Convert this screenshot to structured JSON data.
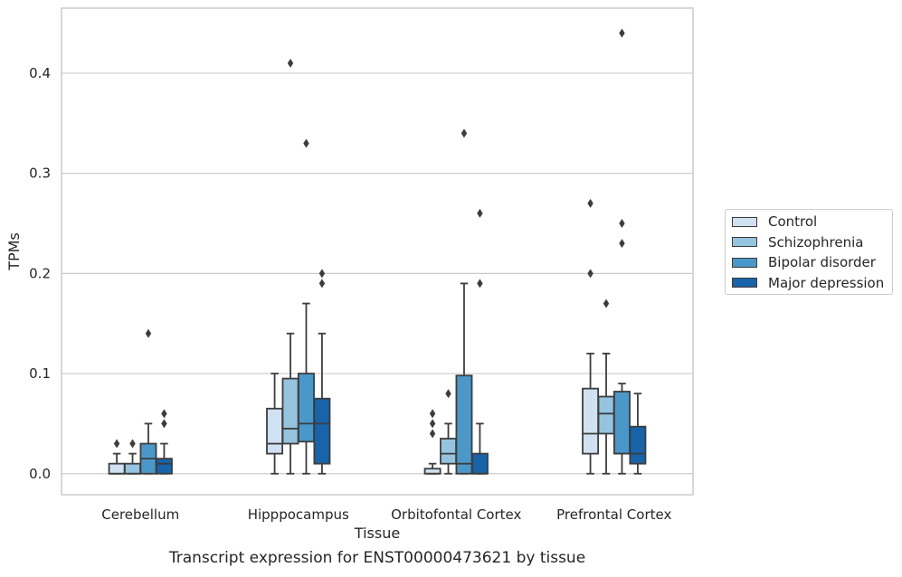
{
  "chart_data": {
    "type": "box",
    "caption": "Transcript expression for ENST00000473621 by tissue",
    "xlabel": "Tissue",
    "ylabel": "TPMs",
    "ylim": [
      -0.021,
      0.465
    ],
    "yticks": [
      0.0,
      0.1,
      0.2,
      0.3,
      0.4
    ],
    "ytick_labels": [
      "0.0",
      "0.1",
      "0.2",
      "0.3",
      "0.4"
    ],
    "grid": "horizontal",
    "legend_position": "right-outside",
    "categories": [
      "Cerebellum",
      "Hipppocampus",
      "Orbitofontal Cortex",
      "Prefrontal Cortex"
    ],
    "series": [
      {
        "name": "Control",
        "color": "#d0e1f2",
        "boxes": [
          {
            "whisker_low": 0,
            "q1": 0,
            "median": 0,
            "q3": 0.01,
            "whisker_high": 0.02,
            "outliers": [
              0.03
            ]
          },
          {
            "whisker_low": 0,
            "q1": 0.02,
            "median": 0.03,
            "q3": 0.065,
            "whisker_high": 0.1,
            "outliers": []
          },
          {
            "whisker_low": 0,
            "q1": 0,
            "median": 0,
            "q3": 0.005,
            "whisker_high": 0.01,
            "outliers": [
              0.04,
              0.05,
              0.06
            ]
          },
          {
            "whisker_low": 0,
            "q1": 0.02,
            "median": 0.04,
            "q3": 0.085,
            "whisker_high": 0.12,
            "outliers": [
              0.2,
              0.27
            ]
          }
        ]
      },
      {
        "name": "Schizophrenia",
        "color": "#94c4df",
        "boxes": [
          {
            "whisker_low": 0,
            "q1": 0,
            "median": 0,
            "q3": 0.01,
            "whisker_high": 0.02,
            "outliers": [
              0.03
            ]
          },
          {
            "whisker_low": 0,
            "q1": 0.03,
            "median": 0.045,
            "q3": 0.095,
            "whisker_high": 0.14,
            "outliers": [
              0.41
            ]
          },
          {
            "whisker_low": 0,
            "q1": 0.01,
            "median": 0.02,
            "q3": 0.035,
            "whisker_high": 0.05,
            "outliers": [
              0.08
            ]
          },
          {
            "whisker_low": 0,
            "q1": 0.04,
            "median": 0.06,
            "q3": 0.077,
            "whisker_high": 0.12,
            "outliers": [
              0.17
            ]
          }
        ]
      },
      {
        "name": "Bipolar disorder",
        "color": "#4a98c9",
        "boxes": [
          {
            "whisker_low": 0,
            "q1": 0,
            "median": 0.015,
            "q3": 0.03,
            "whisker_high": 0.05,
            "outliers": [
              0.14
            ]
          },
          {
            "whisker_low": 0,
            "q1": 0.032,
            "median": 0.05,
            "q3": 0.1,
            "whisker_high": 0.17,
            "outliers": [
              0.33
            ]
          },
          {
            "whisker_low": 0,
            "q1": 0,
            "median": 0.01,
            "q3": 0.098,
            "whisker_high": 0.19,
            "outliers": [
              0.34
            ]
          },
          {
            "whisker_low": 0,
            "q1": 0.02,
            "median": 0.02,
            "q3": 0.082,
            "whisker_high": 0.09,
            "outliers": [
              0.23,
              0.25,
              0.44
            ]
          }
        ]
      },
      {
        "name": "Major depression",
        "color": "#1764ab",
        "boxes": [
          {
            "whisker_low": 0,
            "q1": 0,
            "median": 0.01,
            "q3": 0.015,
            "whisker_high": 0.03,
            "outliers": [
              0.05,
              0.06
            ]
          },
          {
            "whisker_low": 0,
            "q1": 0.01,
            "median": 0.05,
            "q3": 0.075,
            "whisker_high": 0.14,
            "outliers": [
              0.19,
              0.2
            ]
          },
          {
            "whisker_low": 0,
            "q1": 0,
            "median": 0,
            "q3": 0.02,
            "whisker_high": 0.05,
            "outliers": [
              0.19,
              0.26
            ]
          },
          {
            "whisker_low": 0,
            "q1": 0.01,
            "median": 0.02,
            "q3": 0.047,
            "whisker_high": 0.08,
            "outliers": []
          }
        ]
      }
    ]
  }
}
